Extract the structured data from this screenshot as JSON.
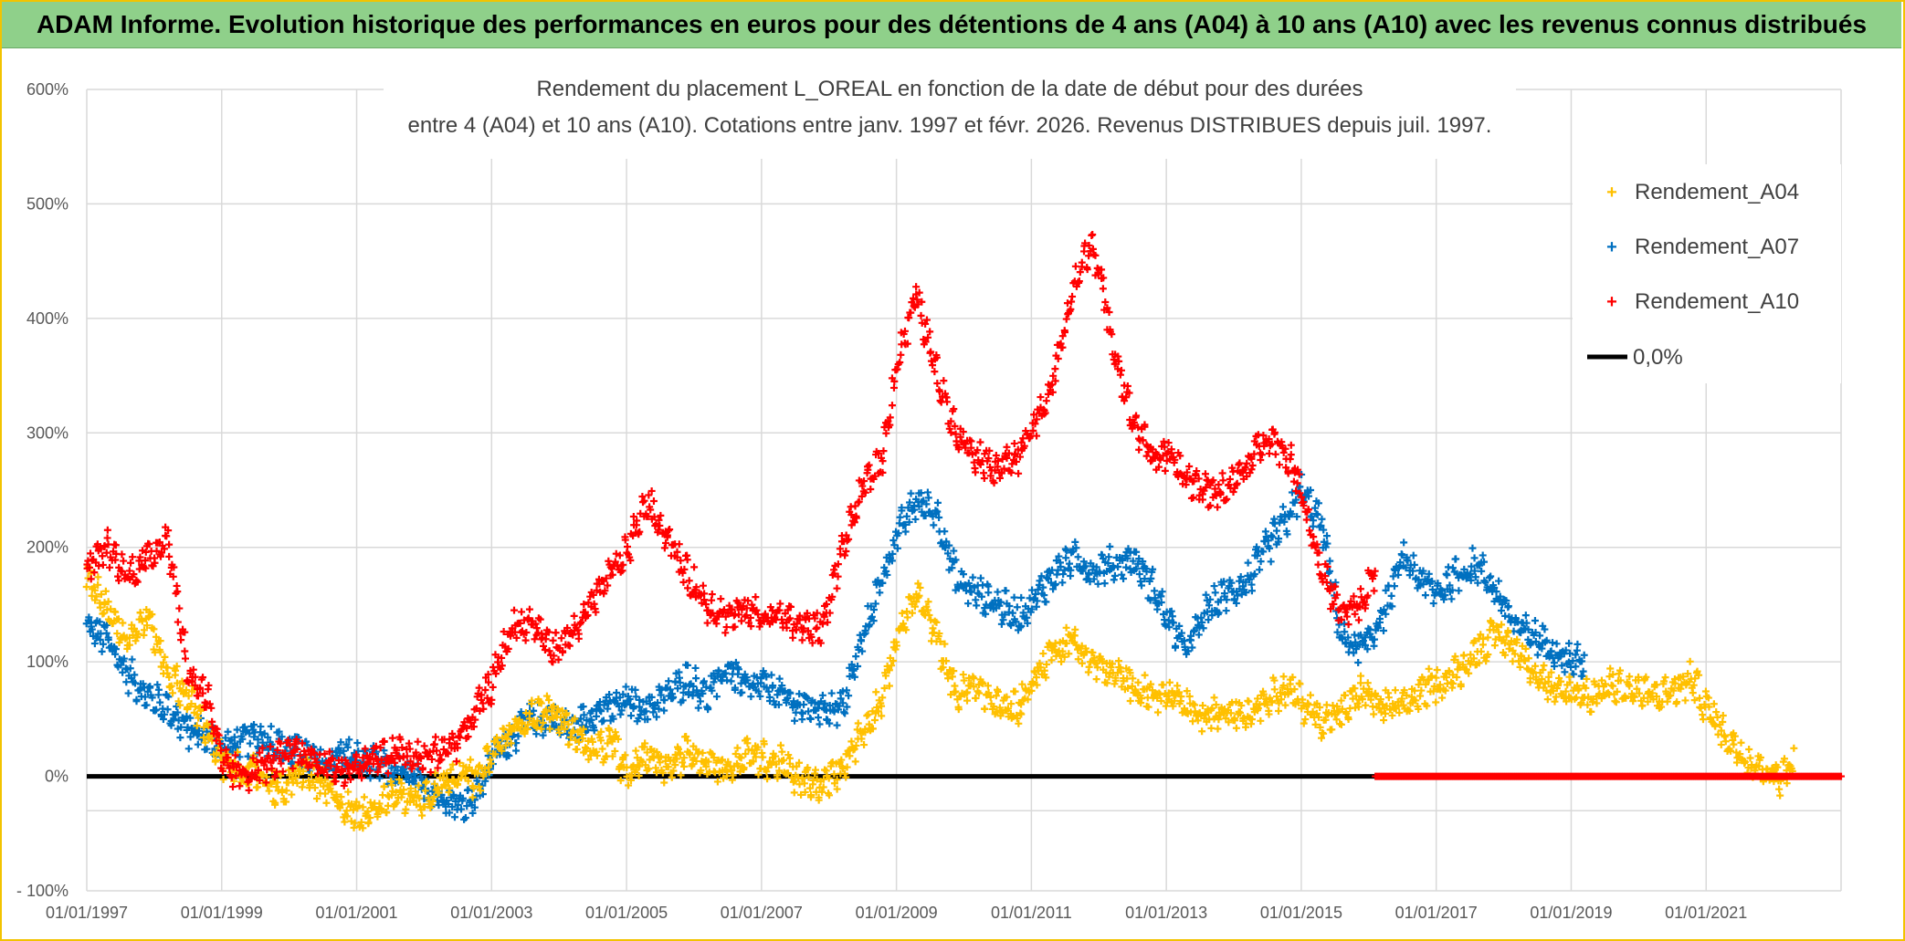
{
  "header": {
    "banner": "ADAM Informe. Evolution historique des performances en euros pour des détentions de 4 ans (A04) à 10 ans (A10) avec les revenus connus distribués"
  },
  "colors": {
    "banner_bg": "#8fd08a",
    "a04": "#ffc000",
    "a07": "#0070c0",
    "a10": "#ff0000",
    "zero": "#000000",
    "grid": "#d9d9d9"
  },
  "chart_data": {
    "type": "scatter",
    "title_lines": [
      "Rendement du placement L_OREAL en fonction de la date de début pour des durées",
      "entre 4 (A04) et 10 ans (A10). Cotations entre janv. 1997 et févr. 2026. Revenus DISTRIBUES depuis juil. 1997."
    ],
    "x_range": [
      1997.0,
      2023.0
    ],
    "ylim": [
      -100,
      600
    ],
    "y_ticks": [
      {
        "value": 600,
        "label": "600%"
      },
      {
        "value": 500,
        "label": "500%"
      },
      {
        "value": 400,
        "label": "400%"
      },
      {
        "value": 300,
        "label": "300%"
      },
      {
        "value": 200,
        "label": "200%"
      },
      {
        "value": 100,
        "label": "100%"
      },
      {
        "value": 0,
        "label": "0%"
      },
      {
        "value": -100,
        "label": "- 100%"
      }
    ],
    "x_ticks": [
      {
        "value": 1997.0,
        "label": "01/01/1997"
      },
      {
        "value": 1999.0,
        "label": "01/01/1999"
      },
      {
        "value": 2001.0,
        "label": "01/01/2001"
      },
      {
        "value": 2003.0,
        "label": "01/01/2003"
      },
      {
        "value": 2005.0,
        "label": "01/01/2005"
      },
      {
        "value": 2007.0,
        "label": "01/01/2007"
      },
      {
        "value": 2009.0,
        "label": "01/01/2009"
      },
      {
        "value": 2011.0,
        "label": "01/01/2011"
      },
      {
        "value": 2013.0,
        "label": "01/01/2013"
      },
      {
        "value": 2015.0,
        "label": "01/01/2015"
      },
      {
        "value": 2017.0,
        "label": "01/01/2017"
      },
      {
        "value": 2019.0,
        "label": "01/01/2019"
      },
      {
        "value": 2021.0,
        "label": "01/01/2021"
      }
    ],
    "series": [
      {
        "name": "Rendement_A04",
        "color": "#ffc000",
        "x": [
          1997.0,
          1997.3,
          1997.6,
          1997.9,
          1998.2,
          1998.5,
          1998.8,
          1999.0,
          1999.3,
          1999.6,
          1999.9,
          2000.2,
          2000.5,
          2000.8,
          2001.0,
          2001.3,
          2001.6,
          2001.9,
          2002.2,
          2002.5,
          2002.8,
          2003.0,
          2003.3,
          2003.6,
          2003.9,
          2004.2,
          2004.5,
          2004.8,
          2005.0,
          2005.3,
          2005.6,
          2005.9,
          2006.2,
          2006.5,
          2006.8,
          2007.0,
          2007.3,
          2007.6,
          2007.9,
          2008.2,
          2008.5,
          2008.8,
          2009.0,
          2009.3,
          2009.6,
          2009.9,
          2010.2,
          2010.5,
          2010.8,
          2011.0,
          2011.3,
          2011.6,
          2011.9,
          2012.2,
          2012.5,
          2012.8,
          2013.0,
          2013.3,
          2013.6,
          2013.9,
          2014.2,
          2014.5,
          2014.8,
          2015.0,
          2015.3,
          2015.6,
          2015.9,
          2016.2,
          2016.5,
          2016.8,
          2017.0,
          2017.3,
          2017.6,
          2017.9,
          2018.2,
          2018.5,
          2018.8,
          2019.0,
          2019.3,
          2019.6,
          2019.9,
          2020.2,
          2020.5,
          2020.8,
          2021.0,
          2021.3,
          2021.6,
          2021.9,
          2022.1,
          2022.3
        ],
        "values": [
          170,
          150,
          120,
          140,
          90,
          70,
          40,
          10,
          5,
          0,
          -15,
          5,
          -10,
          -25,
          -35,
          -25,
          -15,
          -20,
          -10,
          5,
          -5,
          20,
          40,
          55,
          55,
          40,
          20,
          30,
          0,
          20,
          10,
          20,
          15,
          5,
          20,
          15,
          10,
          -5,
          -10,
          10,
          40,
          70,
          120,
          160,
          120,
          70,
          80,
          60,
          60,
          80,
          110,
          120,
          100,
          90,
          80,
          70,
          70,
          60,
          50,
          60,
          55,
          70,
          75,
          65,
          50,
          55,
          75,
          60,
          60,
          75,
          80,
          90,
          110,
          125,
          110,
          90,
          70,
          75,
          70,
          80,
          75,
          70,
          75,
          85,
          60,
          35,
          15,
          5,
          0,
          10
        ]
      },
      {
        "name": "Rendement_A07",
        "color": "#0070c0",
        "x": [
          1997.0,
          1997.3,
          1997.6,
          1997.9,
          1998.2,
          1998.5,
          1998.8,
          1999.0,
          1999.3,
          1999.6,
          1999.9,
          2000.2,
          2000.5,
          2000.8,
          2001.0,
          2001.3,
          2001.6,
          2001.9,
          2002.2,
          2002.5,
          2002.8,
          2003.0,
          2003.3,
          2003.6,
          2003.9,
          2004.2,
          2004.5,
          2004.8,
          2005.0,
          2005.3,
          2005.6,
          2005.9,
          2006.2,
          2006.5,
          2006.8,
          2007.0,
          2007.3,
          2007.6,
          2007.9,
          2008.2,
          2008.5,
          2008.8,
          2009.0,
          2009.3,
          2009.6,
          2009.9,
          2010.2,
          2010.5,
          2010.8,
          2011.0,
          2011.3,
          2011.6,
          2011.9,
          2012.2,
          2012.5,
          2012.8,
          2013.0,
          2013.3,
          2013.6,
          2013.9,
          2014.2,
          2014.5,
          2014.8,
          2015.0,
          2015.3,
          2015.6,
          2015.9,
          2016.2,
          2016.5,
          2016.8,
          2017.0,
          2017.3,
          2017.6,
          2017.9,
          2018.2,
          2018.5,
          2018.8,
          2019.0,
          2019.2
        ],
        "values": [
          130,
          120,
          90,
          70,
          60,
          40,
          35,
          25,
          30,
          35,
          25,
          20,
          10,
          20,
          15,
          10,
          5,
          -5,
          -15,
          -25,
          -15,
          15,
          35,
          50,
          50,
          40,
          55,
          60,
          65,
          60,
          70,
          85,
          70,
          95,
          75,
          80,
          70,
          60,
          60,
          60,
          120,
          175,
          210,
          240,
          230,
          170,
          160,
          150,
          140,
          150,
          175,
          190,
          180,
          185,
          190,
          165,
          140,
          110,
          145,
          160,
          170,
          200,
          225,
          250,
          220,
          120,
          110,
          140,
          190,
          170,
          160,
          175,
          185,
          160,
          130,
          120,
          110,
          100,
          100
        ]
      },
      {
        "name": "Rendement_A10",
        "color": "#ff0000",
        "x": [
          1997.0,
          1997.3,
          1997.6,
          1997.9,
          1998.2,
          1998.5,
          1998.8,
          1999.0,
          1999.3,
          1999.6,
          1999.9,
          2000.2,
          2000.5,
          2000.8,
          2001.0,
          2001.3,
          2001.6,
          2001.9,
          2002.2,
          2002.5,
          2002.8,
          2003.0,
          2003.3,
          2003.6,
          2003.9,
          2004.2,
          2004.5,
          2004.8,
          2005.0,
          2005.3,
          2005.6,
          2005.9,
          2006.2,
          2006.5,
          2006.8,
          2007.0,
          2007.3,
          2007.6,
          2007.9,
          2008.2,
          2008.5,
          2008.8,
          2009.0,
          2009.3,
          2009.6,
          2009.9,
          2010.2,
          2010.5,
          2010.8,
          2011.0,
          2011.3,
          2011.6,
          2011.9,
          2012.2,
          2012.5,
          2012.8,
          2013.0,
          2013.3,
          2013.6,
          2013.9,
          2014.2,
          2014.5,
          2014.8,
          2015.0,
          2015.3,
          2015.6,
          2015.9,
          2016.1
        ],
        "values": [
          180,
          200,
          175,
          190,
          210,
          90,
          70,
          10,
          0,
          10,
          15,
          20,
          10,
          5,
          10,
          15,
          20,
          15,
          20,
          30,
          60,
          80,
          130,
          135,
          110,
          125,
          150,
          180,
          195,
          240,
          210,
          175,
          150,
          140,
          145,
          140,
          140,
          130,
          130,
          200,
          250,
          280,
          360,
          420,
          350,
          300,
          280,
          270,
          280,
          300,
          340,
          420,
          470,
          380,
          310,
          280,
          280,
          260,
          250,
          250,
          270,
          300,
          280,
          250,
          180,
          140,
          150,
          180
        ]
      },
      {
        "name": "0,0%",
        "color": "#000000",
        "x": [
          1997.0,
          2023.0
        ],
        "values": [
          0,
          0
        ]
      }
    ],
    "red_zero_segment": {
      "x_from": 2016.1,
      "x_to": 2023.0,
      "value": 0
    },
    "legend": [
      "Rendement_A04",
      "Rendement_A07",
      "Rendement_A10",
      "0,0%"
    ],
    "legend_position": "top-right",
    "grid": true
  }
}
